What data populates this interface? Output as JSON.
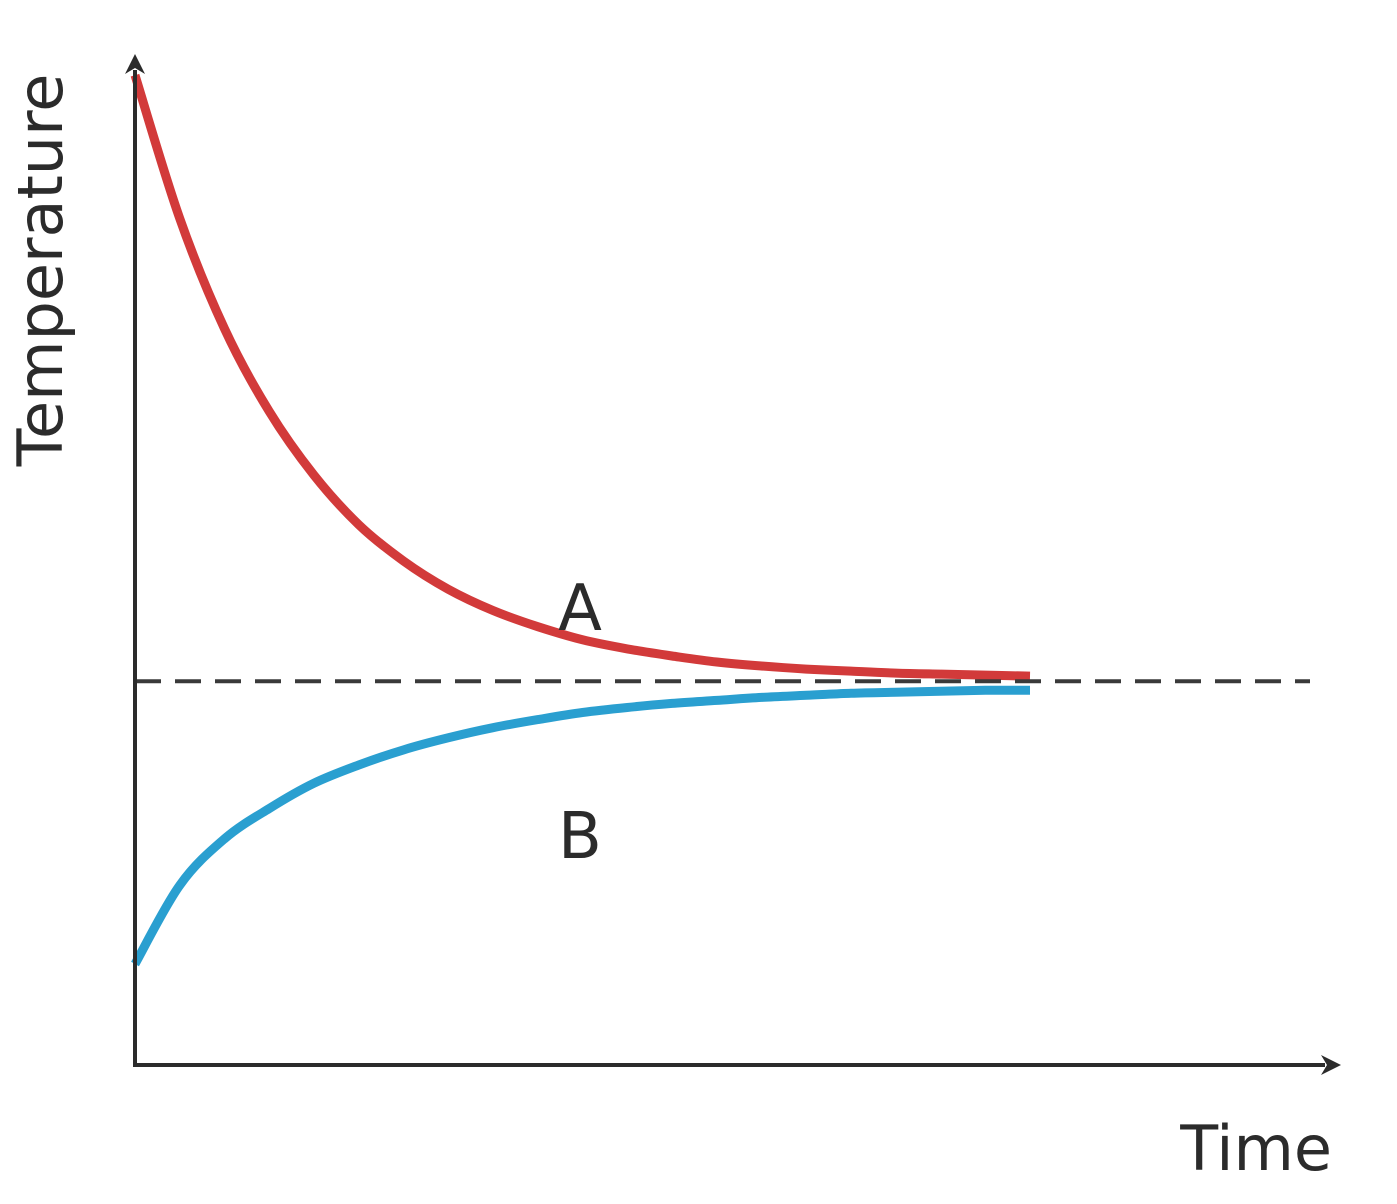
{
  "chart_data": {
    "type": "line",
    "title": "",
    "xlabel": "Time",
    "ylabel": "Temperature",
    "x_ticks": [],
    "y_ticks": [],
    "grid": false,
    "xlim": [
      0,
      10
    ],
    "ylim": [
      0,
      10
    ],
    "equilibrium": {
      "value": 3.8,
      "style": "dashed",
      "color": "#3a3a3a"
    },
    "series": [
      {
        "name": "A",
        "color": "#d23a3a",
        "x": [
          0,
          0.5,
          1,
          1.5,
          2,
          2.5,
          3,
          3.5,
          4,
          4.5,
          5,
          5.5,
          6,
          6.5,
          7,
          7.5,
          8,
          8.5,
          9,
          9.5,
          10
        ],
        "y": [
          9.8,
          8.38,
          7.29,
          6.47,
          5.84,
          5.35,
          4.99,
          4.71,
          4.5,
          4.34,
          4.21,
          4.12,
          4.05,
          3.99,
          3.95,
          3.92,
          3.9,
          3.88,
          3.87,
          3.86,
          3.85
        ]
      },
      {
        "name": "B",
        "color": "#2a9fd0",
        "x": [
          0,
          0.5,
          1,
          1.5,
          2,
          2.5,
          3,
          3.5,
          4,
          4.5,
          5,
          5.5,
          6,
          6.5,
          7,
          7.5,
          8,
          8.5,
          9,
          9.5,
          10
        ],
        "y": [
          1.0,
          1.78,
          2.24,
          2.54,
          2.79,
          2.97,
          3.12,
          3.24,
          3.34,
          3.42,
          3.49,
          3.54,
          3.58,
          3.61,
          3.64,
          3.66,
          3.68,
          3.69,
          3.7,
          3.71,
          3.71
        ]
      }
    ],
    "annotations": [
      "A",
      "B"
    ]
  }
}
